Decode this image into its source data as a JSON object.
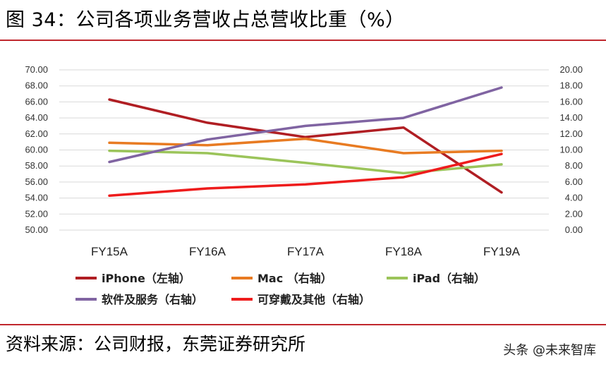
{
  "title": "图 34：公司各项业务营收占总营收比重（%）",
  "source": "资料来源：公司财报，东莞证券研究所",
  "watermark": "头条 @未来智库",
  "chart_data": {
    "type": "line",
    "categories": [
      "FY15A",
      "FY16A",
      "FY17A",
      "FY18A",
      "FY19A"
    ],
    "y_left": {
      "ylim": [
        50,
        70
      ],
      "ticks": [
        "50.00",
        "52.00",
        "54.00",
        "56.00",
        "58.00",
        "60.00",
        "62.00",
        "64.00",
        "66.00",
        "68.00",
        "70.00"
      ]
    },
    "y_right": {
      "ylim": [
        0,
        20
      ],
      "ticks": [
        "0.00",
        "2.00",
        "4.00",
        "6.00",
        "8.00",
        "10.00",
        "12.00",
        "14.00",
        "16.00",
        "18.00",
        "20.00"
      ]
    },
    "grid": true,
    "legend_position": "bottom",
    "series": [
      {
        "name": "iPhone（左轴）",
        "axis": "left",
        "color": "#b01e23",
        "values": [
          66.3,
          63.4,
          61.6,
          62.8,
          54.7
        ]
      },
      {
        "name": "Mac （右轴）",
        "axis": "right",
        "color": "#e87b22",
        "values": [
          10.9,
          10.6,
          11.4,
          9.6,
          9.9
        ]
      },
      {
        "name": "iPad（右轴）",
        "axis": "right",
        "color": "#9bc45a",
        "values": [
          9.9,
          9.6,
          8.4,
          7.1,
          8.2
        ]
      },
      {
        "name": "软件及服务（右轴）",
        "axis": "right",
        "color": "#8064a2",
        "values": [
          8.5,
          11.3,
          13.0,
          14.0,
          17.8
        ]
      },
      {
        "name": "可穿戴及其他（右轴）",
        "axis": "right",
        "color": "#ee1c1c",
        "values": [
          4.3,
          5.2,
          5.7,
          6.6,
          9.5
        ]
      }
    ]
  }
}
